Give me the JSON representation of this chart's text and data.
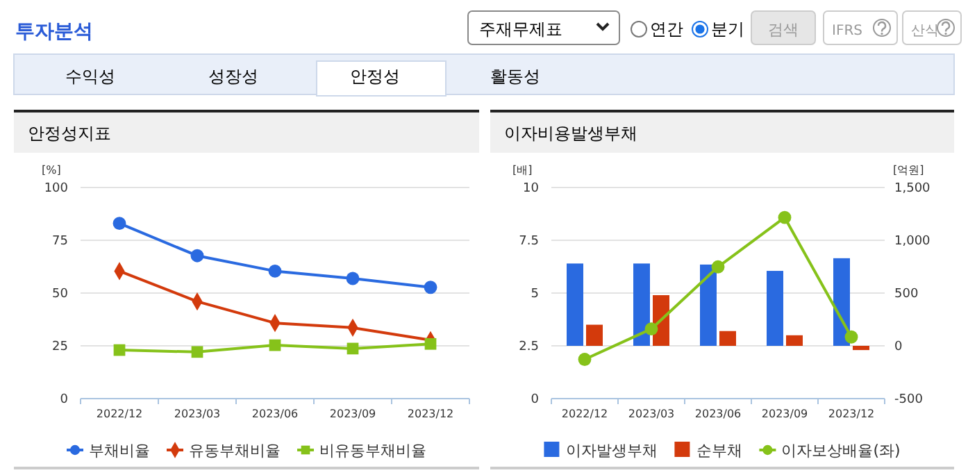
{
  "chart_data": [
    {
      "type": "other",
      "title": "투자분석",
      "annotations": [
        "주재무제표",
        "연간",
        "분기",
        "검색",
        "IFRS",
        "산식",
        "수익성",
        "성장성",
        "안정성",
        "활동성"
      ]
    },
    {
      "type": "line",
      "title": "안정성지표",
      "ylabel": "[%]",
      "categories": [
        "2022/12",
        "2023/03",
        "2023/06",
        "2023/09",
        "2023/12"
      ],
      "ylim": [
        0,
        100
      ],
      "yticks": [
        0,
        25,
        50,
        75,
        100
      ],
      "grid": "y",
      "legend": "bottom",
      "line_style": "solid",
      "series": [
        {
          "name": "부채비율",
          "color": "#2a6ae0",
          "marker": "circle",
          "values": [
            83.0,
            67.7,
            60.4,
            56.9,
            52.7
          ]
        },
        {
          "name": "유동부채비율",
          "color": "#d33a0c",
          "marker": "diamond",
          "values": [
            60.4,
            46.0,
            35.8,
            33.6,
            27.7
          ]
        },
        {
          "name": "비유동부채비율",
          "color": "#86c21a",
          "marker": "square",
          "values": [
            23.0,
            22.1,
            25.3,
            23.7,
            25.9
          ]
        }
      ]
    },
    {
      "type": "bar",
      "title": "이자비용발생부채",
      "ylabel": "[배]",
      "y2label": "[억원]",
      "categories": [
        "2022/12",
        "2023/03",
        "2023/06",
        "2023/09",
        "2023/12"
      ],
      "ylim": [
        0,
        10
      ],
      "yticks": [
        0,
        {
          "value": 2.5,
          "label": "2.5"
        },
        5,
        {
          "value": 7.5,
          "label": "7.5"
        },
        10
      ],
      "y2lim": [
        -500,
        1500
      ],
      "y2ticks": [
        {
          "value": -500,
          "label": "-500"
        },
        0,
        500,
        {
          "value": 1000,
          "label": "1,000"
        },
        {
          "value": 1500,
          "label": "1,500"
        }
      ],
      "grid": "y",
      "legend": "bottom",
      "series": [
        {
          "name": "이자발생부채",
          "color": "#2a6ae0",
          "axis": "y2",
          "values": [
            780,
            780,
            770,
            710,
            830
          ]
        },
        {
          "name": "순부채",
          "color": "#d33a0c",
          "axis": "y2",
          "values": [
            200,
            480,
            140,
            100,
            -40
          ]
        },
        {
          "name": "이자보상배율(좌)",
          "type": "line",
          "color": "#86c21a",
          "marker": "circle",
          "axis": "y",
          "values": [
            1.86,
            3.3,
            6.24,
            8.58,
            2.92
          ]
        }
      ]
    }
  ]
}
